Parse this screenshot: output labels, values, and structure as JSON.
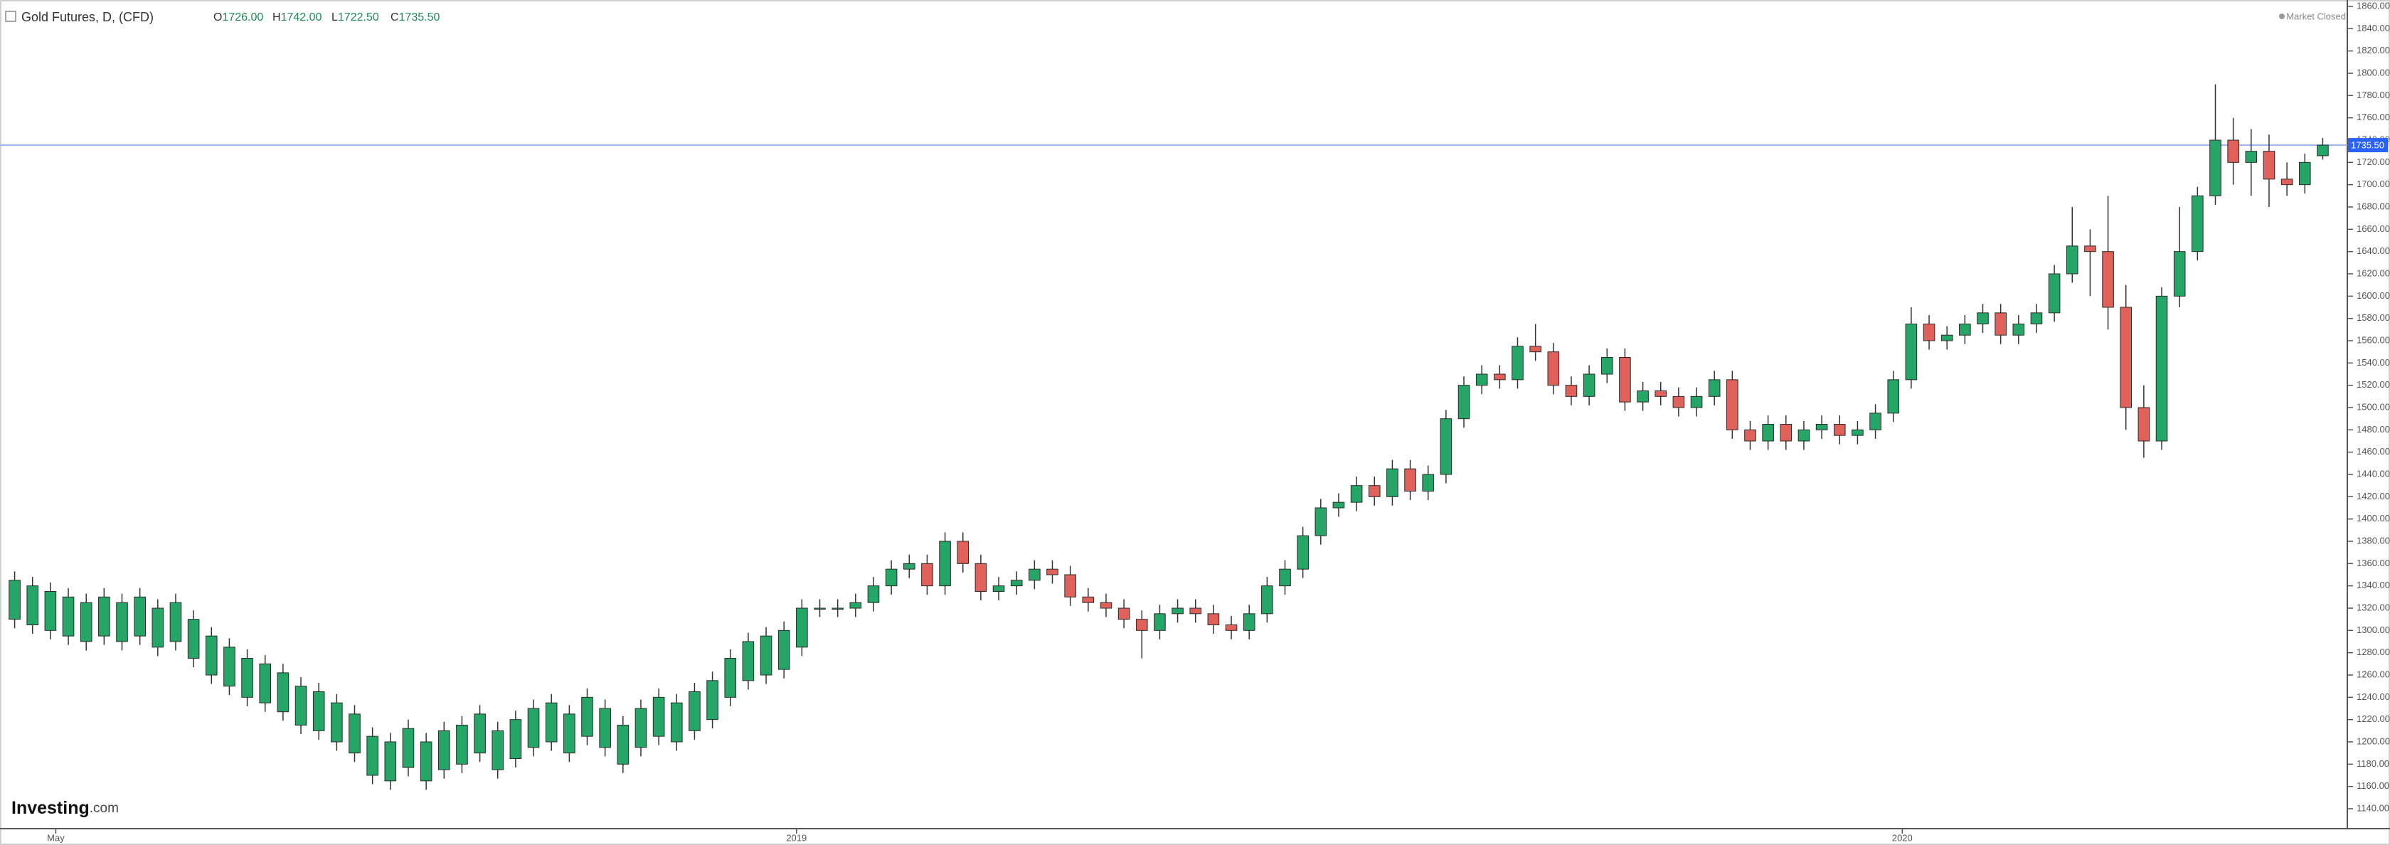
{
  "chart_data": {
    "type": "candlestick",
    "title": "Gold Futures, D, (CFD)",
    "header_ohlc": [
      {
        "key": "O",
        "value": "1726.00"
      },
      {
        "key": "H",
        "value": "1742.00"
      },
      {
        "key": "L",
        "value": "1722.50"
      },
      {
        "key": "C",
        "value": "1735.50"
      }
    ],
    "status": "Market Closed",
    "logo": {
      "brand": "Investing",
      "suffix": ".com"
    },
    "up_color": "#26a666",
    "down_color": "#e0605a",
    "line_color": "#9db8ec",
    "price_color": "#2962ff",
    "last_price": {
      "value": 1735.5,
      "label": "1735.50"
    },
    "ylim": [
      1140,
      1860
    ],
    "yticks": [
      {
        "value": 1140,
        "label": "1140.00"
      },
      {
        "value": 1160,
        "label": "1160.00"
      },
      {
        "value": 1180,
        "label": "1180.00"
      },
      {
        "value": 1200,
        "label": "1200.00"
      },
      {
        "value": 1220,
        "label": "1220.00"
      },
      {
        "value": 1240,
        "label": "1240.00"
      },
      {
        "value": 1260,
        "label": "1260.00"
      },
      {
        "value": 1280,
        "label": "1280.00"
      },
      {
        "value": 1300,
        "label": "1300.00"
      },
      {
        "value": 1320,
        "label": "1320.00"
      },
      {
        "value": 1340,
        "label": "1340.00"
      },
      {
        "value": 1360,
        "label": "1360.00"
      },
      {
        "value": 1380,
        "label": "1380.00"
      },
      {
        "value": 1400,
        "label": "1400.00"
      },
      {
        "value": 1420,
        "label": "1420.00"
      },
      {
        "value": 1440,
        "label": "1440.00"
      },
      {
        "value": 1460,
        "label": "1460.00"
      },
      {
        "value": 1480,
        "label": "1480.00"
      },
      {
        "value": 1500,
        "label": "1500.00"
      },
      {
        "value": 1520,
        "label": "1520.00"
      },
      {
        "value": 1540,
        "label": "1540.00"
      },
      {
        "value": 1560,
        "label": "1560.00"
      },
      {
        "value": 1580,
        "label": "1580.00"
      },
      {
        "value": 1600,
        "label": "1600.00"
      },
      {
        "value": 1620,
        "label": "1620.00"
      },
      {
        "value": 1640,
        "label": "1640.00"
      },
      {
        "value": 1660,
        "label": "1660.00"
      },
      {
        "value": 1680,
        "label": "1680.00"
      },
      {
        "value": 1700,
        "label": "1700.00"
      },
      {
        "value": 1720,
        "label": "1720.00"
      },
      {
        "value": 1740,
        "label": "1740.00"
      },
      {
        "value": 1760,
        "label": "1760.00"
      },
      {
        "value": 1780,
        "label": "1780.00"
      },
      {
        "value": 1800,
        "label": "1800.00"
      },
      {
        "value": 1820,
        "label": "1820.00"
      },
      {
        "value": 1840,
        "label": "1840.00"
      },
      {
        "value": 1860,
        "label": "1860.00"
      }
    ],
    "xlim": [
      -0.5,
      129.5
    ],
    "xticks": [
      {
        "value": 2.3,
        "label": "May"
      },
      {
        "value": 43.7,
        "label": "2019"
      },
      {
        "value": 105.5,
        "label": "2020"
      }
    ],
    "open": [
      1310,
      1305,
      1300,
      1295,
      1290,
      1295,
      1290,
      1295,
      1285,
      1290,
      1275,
      1260,
      1250,
      1240,
      1235,
      1227,
      1215,
      1210,
      1200,
      1190,
      1170,
      1165,
      1177,
      1165,
      1175,
      1180,
      1190,
      1175,
      1185,
      1195,
      1200,
      1190,
      1205,
      1195,
      1180,
      1195,
      1205,
      1200,
      1210,
      1220,
      1240,
      1255,
      1260,
      1265,
      1285,
      1320,
      1320,
      1320,
      1325,
      1340,
      1355,
      1360,
      1340,
      1380,
      1360,
      1335,
      1340,
      1345,
      1355,
      1350,
      1330,
      1325,
      1320,
      1310,
      1300,
      1315,
      1320,
      1315,
      1305,
      1300,
      1315,
      1340,
      1355,
      1385,
      1410,
      1415,
      1430,
      1420,
      1445,
      1425,
      1440,
      1490,
      1520,
      1530,
      1525,
      1555,
      1550,
      1520,
      1510,
      1530,
      1545,
      1505,
      1515,
      1510,
      1500,
      1510,
      1525,
      1480,
      1470,
      1485,
      1470,
      1480,
      1485,
      1475,
      1480,
      1495,
      1525,
      1575,
      1560,
      1565,
      1575,
      1585,
      1565,
      1575,
      1585,
      1620,
      1645,
      1640,
      1590,
      1500,
      1470,
      1600,
      1640,
      1690,
      1740,
      1720,
      1730,
      1705,
      1700,
      1726
    ],
    "high": [
      1353,
      1348,
      1343,
      1338,
      1333,
      1338,
      1333,
      1338,
      1328,
      1333,
      1318,
      1303,
      1293,
      1283,
      1278,
      1270,
      1258,
      1253,
      1243,
      1233,
      1213,
      1208,
      1220,
      1208,
      1218,
      1223,
      1233,
      1218,
      1228,
      1238,
      1243,
      1233,
      1248,
      1238,
      1223,
      1238,
      1248,
      1243,
      1253,
      1263,
      1283,
      1298,
      1303,
      1308,
      1328,
      1328,
      1328,
      1333,
      1348,
      1363,
      1368,
      1368,
      1388,
      1388,
      1368,
      1348,
      1353,
      1363,
      1363,
      1358,
      1338,
      1333,
      1328,
      1318,
      1323,
      1328,
      1328,
      1323,
      1313,
      1323,
      1348,
      1363,
      1393,
      1418,
      1423,
      1438,
      1438,
      1453,
      1453,
      1448,
      1498,
      1528,
      1538,
      1538,
      1563,
      1575,
      1558,
      1528,
      1538,
      1553,
      1553,
      1523,
      1523,
      1518,
      1518,
      1533,
      1533,
      1488,
      1493,
      1493,
      1488,
      1493,
      1493,
      1488,
      1503,
      1533,
      1590,
      1583,
      1573,
      1583,
      1593,
      1593,
      1583,
      1593,
      1628,
      1680,
      1660,
      1690,
      1610,
      1520,
      1608,
      1680,
      1698,
      1790,
      1760,
      1750,
      1745,
      1720,
      1728,
      1742
    ],
    "low": [
      1302,
      1297,
      1292,
      1287,
      1282,
      1287,
      1282,
      1287,
      1277,
      1282,
      1267,
      1252,
      1242,
      1232,
      1227,
      1219,
      1207,
      1202,
      1192,
      1182,
      1162,
      1157,
      1169,
      1157,
      1167,
      1172,
      1182,
      1167,
      1177,
      1187,
      1192,
      1182,
      1197,
      1187,
      1172,
      1187,
      1197,
      1192,
      1202,
      1212,
      1232,
      1247,
      1252,
      1257,
      1277,
      1312,
      1312,
      1312,
      1317,
      1332,
      1347,
      1332,
      1332,
      1352,
      1327,
      1327,
      1332,
      1337,
      1342,
      1322,
      1317,
      1312,
      1302,
      1275,
      1292,
      1307,
      1307,
      1297,
      1292,
      1292,
      1307,
      1332,
      1347,
      1377,
      1402,
      1407,
      1412,
      1412,
      1417,
      1417,
      1432,
      1482,
      1512,
      1517,
      1517,
      1542,
      1512,
      1502,
      1502,
      1522,
      1497,
      1497,
      1502,
      1492,
      1492,
      1502,
      1472,
      1462,
      1462,
      1462,
      1462,
      1472,
      1467,
      1467,
      1472,
      1487,
      1517,
      1552,
      1552,
      1557,
      1567,
      1557,
      1557,
      1567,
      1577,
      1612,
      1600,
      1570,
      1480,
      1455,
      1462,
      1590,
      1632,
      1682,
      1700,
      1690,
      1680,
      1690,
      1692,
      1722.5
    ],
    "close": [
      1345,
      1340,
      1335,
      1330,
      1325,
      1330,
      1325,
      1330,
      1320,
      1325,
      1310,
      1295,
      1285,
      1275,
      1270,
      1262,
      1250,
      1245,
      1235,
      1225,
      1205,
      1200,
      1212,
      1200,
      1210,
      1215,
      1225,
      1210,
      1220,
      1230,
      1235,
      1225,
      1240,
      1230,
      1215,
      1230,
      1240,
      1235,
      1245,
      1255,
      1275,
      1290,
      1295,
      1300,
      1320,
      1320,
      1320,
      1325,
      1340,
      1355,
      1360,
      1340,
      1380,
      1360,
      1335,
      1340,
      1345,
      1355,
      1350,
      1330,
      1325,
      1320,
      1310,
      1300,
      1315,
      1320,
      1315,
      1305,
      1300,
      1315,
      1340,
      1355,
      1385,
      1410,
      1415,
      1430,
      1420,
      1445,
      1425,
      1440,
      1490,
      1520,
      1530,
      1525,
      1555,
      1550,
      1520,
      1510,
      1530,
      1545,
      1505,
      1515,
      1510,
      1500,
      1510,
      1525,
      1480,
      1470,
      1485,
      1470,
      1480,
      1485,
      1475,
      1480,
      1495,
      1525,
      1575,
      1560,
      1565,
      1575,
      1585,
      1565,
      1575,
      1585,
      1620,
      1645,
      1640,
      1590,
      1500,
      1470,
      1600,
      1640,
      1690,
      1740,
      1720,
      1730,
      1705,
      1700,
      1720,
      1735.5
    ]
  }
}
